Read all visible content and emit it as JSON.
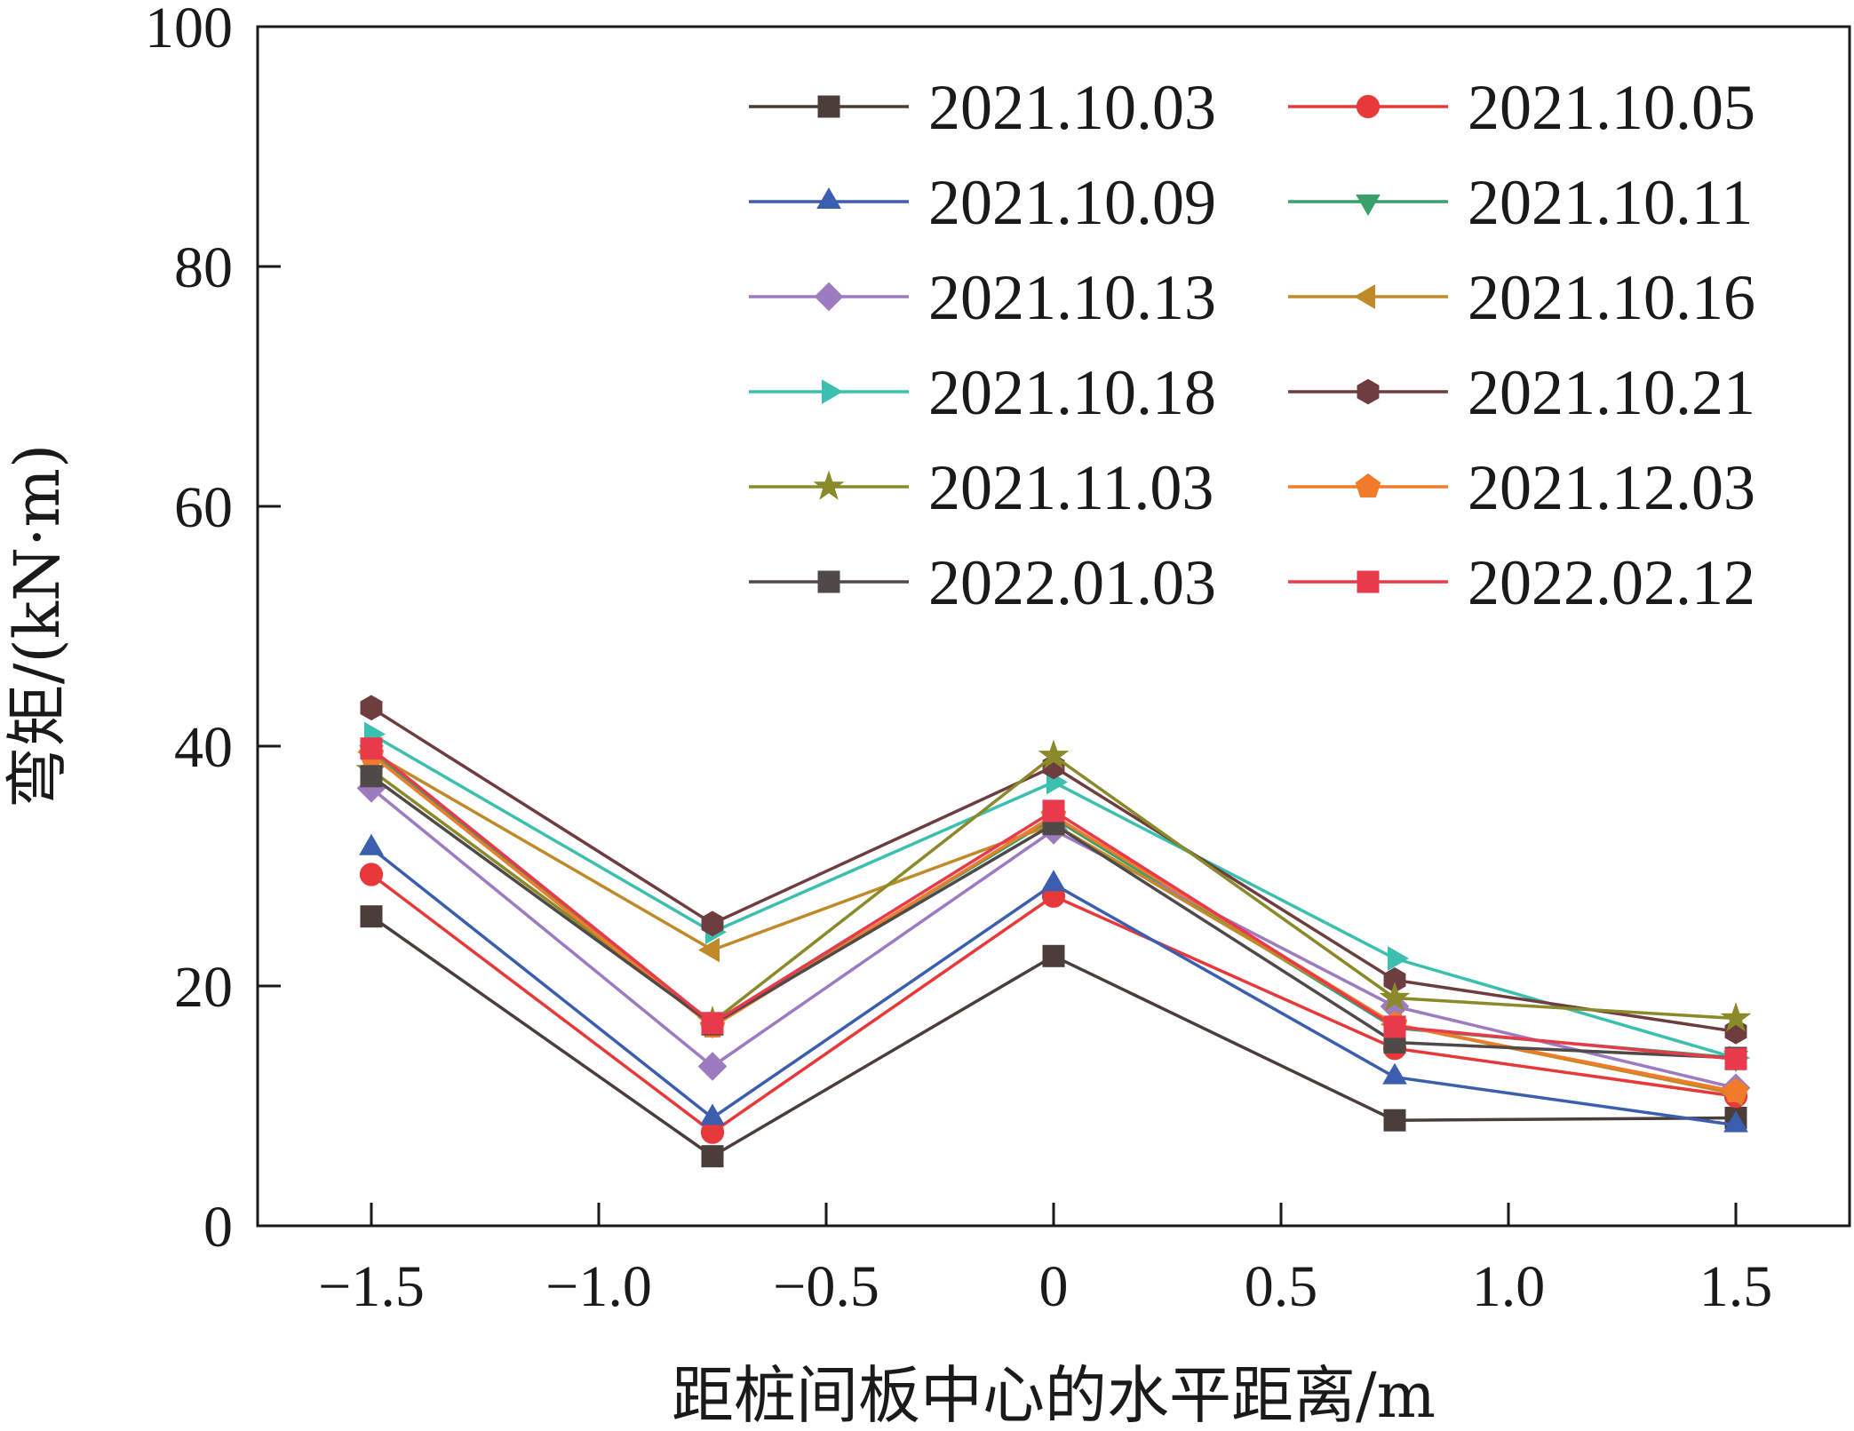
{
  "chart_data": {
    "type": "line",
    "xlabel": "距桩间板中心的水平距离/m",
    "ylabel": "弯矩/(kN·m)",
    "xlim": [
      -1.75,
      1.75
    ],
    "ylim": [
      0,
      100
    ],
    "x_ticks": [
      -1.5,
      -1.0,
      -0.5,
      0,
      0.5,
      1.0,
      1.5
    ],
    "x_tick_labels": [
      "−1.5",
      "−1.0",
      "−0.5",
      "0",
      "0.5",
      "1.0",
      "1.5"
    ],
    "y_ticks": [
      0,
      20,
      40,
      60,
      80,
      100
    ],
    "y_tick_labels": [
      "0",
      "20",
      "40",
      "60",
      "80",
      "100"
    ],
    "grid": false,
    "legend_position": "top-right",
    "x": [
      -1.5,
      -0.75,
      0,
      0.75,
      1.5
    ],
    "series": [
      {
        "name": "2021.10.03",
        "color": "#4a3d3a",
        "marker": "square",
        "values": [
          25.8,
          5.8,
          22.5,
          8.8,
          9.0
        ]
      },
      {
        "name": "2021.10.05",
        "color": "#e8393a",
        "marker": "circle",
        "values": [
          29.3,
          7.8,
          27.5,
          14.8,
          10.8
        ]
      },
      {
        "name": "2021.10.09",
        "color": "#3b5fae",
        "marker": "triangle-up",
        "values": [
          31.5,
          9.0,
          28.5,
          12.4,
          8.4
        ]
      },
      {
        "name": "2021.10.11",
        "color": "#3aa06a",
        "marker": "triangle-down",
        "values": [
          39.5,
          16.8,
          34.0,
          16.5,
          14.0
        ]
      },
      {
        "name": "2021.10.13",
        "color": "#9c7bc0",
        "marker": "diamond",
        "values": [
          36.5,
          13.3,
          33.0,
          18.3,
          11.5
        ]
      },
      {
        "name": "2021.10.16",
        "color": "#c08a28",
        "marker": "triangle-left",
        "values": [
          39.5,
          23.0,
          33.5,
          16.8,
          11.0
        ]
      },
      {
        "name": "2021.10.18",
        "color": "#3bc0b0",
        "marker": "triangle-right",
        "values": [
          41.0,
          24.5,
          37.0,
          22.3,
          14.0
        ]
      },
      {
        "name": "2021.10.21",
        "color": "#6e3d40",
        "marker": "hexagon",
        "values": [
          43.2,
          25.2,
          38.3,
          20.5,
          16.2
        ]
      },
      {
        "name": "2021.11.03",
        "color": "#8a8a2a",
        "marker": "star",
        "values": [
          38.0,
          17.0,
          39.2,
          19.0,
          17.3
        ]
      },
      {
        "name": "2021.12.03",
        "color": "#f07b2a",
        "marker": "pentagon",
        "values": [
          39.3,
          16.6,
          34.2,
          16.8,
          11.2
        ]
      },
      {
        "name": "2022.01.03",
        "color": "#4f4a48",
        "marker": "square",
        "values": [
          37.5,
          16.8,
          33.5,
          15.3,
          14.0
        ]
      },
      {
        "name": "2022.02.12",
        "color": "#e83a4a",
        "marker": "square",
        "values": [
          39.8,
          16.9,
          34.6,
          16.6,
          13.9
        ]
      }
    ]
  }
}
